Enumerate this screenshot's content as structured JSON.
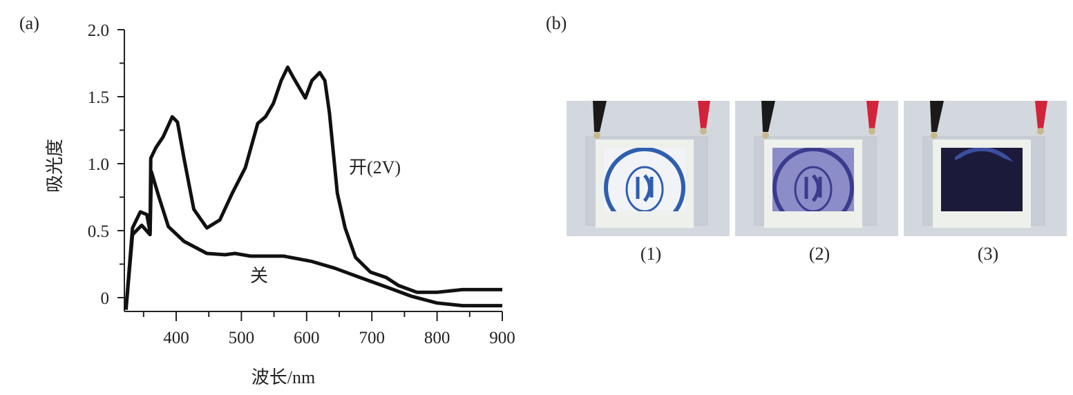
{
  "panel_labels": {
    "a": "(a)",
    "b": "(b)"
  },
  "chart_data": {
    "type": "line",
    "title": "",
    "xlabel": "波长/nm",
    "ylabel": "吸光度",
    "xlim": [
      325,
      900
    ],
    "ylim": [
      -0.1,
      2.0
    ],
    "x_ticks": [
      "400",
      "500",
      "600",
      "700",
      "800",
      "900"
    ],
    "y_ticks": [
      "0",
      "0.5",
      "1.0",
      "1.5",
      "2.0"
    ],
    "grid": false,
    "series": [
      {
        "name": "开(2V)",
        "color": "#111111",
        "points": [
          [
            323,
            -0.09
          ],
          [
            333,
            0.52
          ],
          [
            345,
            0.64
          ],
          [
            355,
            0.62
          ],
          [
            360,
            0.49
          ],
          [
            361,
            1.04
          ],
          [
            369,
            1.12
          ],
          [
            380,
            1.2
          ],
          [
            394,
            1.35
          ],
          [
            402,
            1.31
          ],
          [
            412,
            1.04
          ],
          [
            427,
            0.66
          ],
          [
            447,
            0.52
          ],
          [
            467,
            0.58
          ],
          [
            486,
            0.78
          ],
          [
            506,
            0.97
          ],
          [
            525,
            1.3
          ],
          [
            537,
            1.35
          ],
          [
            549,
            1.45
          ],
          [
            561,
            1.62
          ],
          [
            571,
            1.72
          ],
          [
            580,
            1.64
          ],
          [
            598,
            1.49
          ],
          [
            608,
            1.62
          ],
          [
            620,
            1.68
          ],
          [
            628,
            1.62
          ],
          [
            635,
            1.38
          ],
          [
            647,
            0.78
          ],
          [
            659,
            0.52
          ],
          [
            675,
            0.3
          ],
          [
            698,
            0.19
          ],
          [
            722,
            0.15
          ],
          [
            741,
            0.09
          ],
          [
            769,
            0.04
          ],
          [
            800,
            0.04
          ],
          [
            839,
            0.06
          ],
          [
            900,
            0.06
          ]
        ]
      },
      {
        "name": "关",
        "color": "#111111",
        "points": [
          [
            323,
            -0.09
          ],
          [
            333,
            0.47
          ],
          [
            347,
            0.54
          ],
          [
            360,
            0.47
          ],
          [
            362,
            0.94
          ],
          [
            373,
            0.76
          ],
          [
            388,
            0.53
          ],
          [
            412,
            0.42
          ],
          [
            447,
            0.33
          ],
          [
            475,
            0.32
          ],
          [
            490,
            0.33
          ],
          [
            514,
            0.31
          ],
          [
            565,
            0.31
          ],
          [
            608,
            0.27
          ],
          [
            643,
            0.22
          ],
          [
            682,
            0.15
          ],
          [
            722,
            0.08
          ],
          [
            761,
            0.01
          ],
          [
            800,
            -0.04
          ],
          [
            839,
            -0.06
          ],
          [
            900,
            -0.06
          ]
        ]
      }
    ]
  },
  "photos": [
    {
      "caption": "(1)",
      "window_color": "#f2f3f7",
      "tint": "#ffffff",
      "logo_color": "#2e5fae"
    },
    {
      "caption": "(2)",
      "window_color": "#8c8cc8",
      "tint": "#7a7ac0",
      "logo_color": "#3b3b8e"
    },
    {
      "caption": "(3)",
      "window_color": "#1c1a3a",
      "tint": "#1c1a3a",
      "logo_color": "#3b4fa0"
    }
  ]
}
